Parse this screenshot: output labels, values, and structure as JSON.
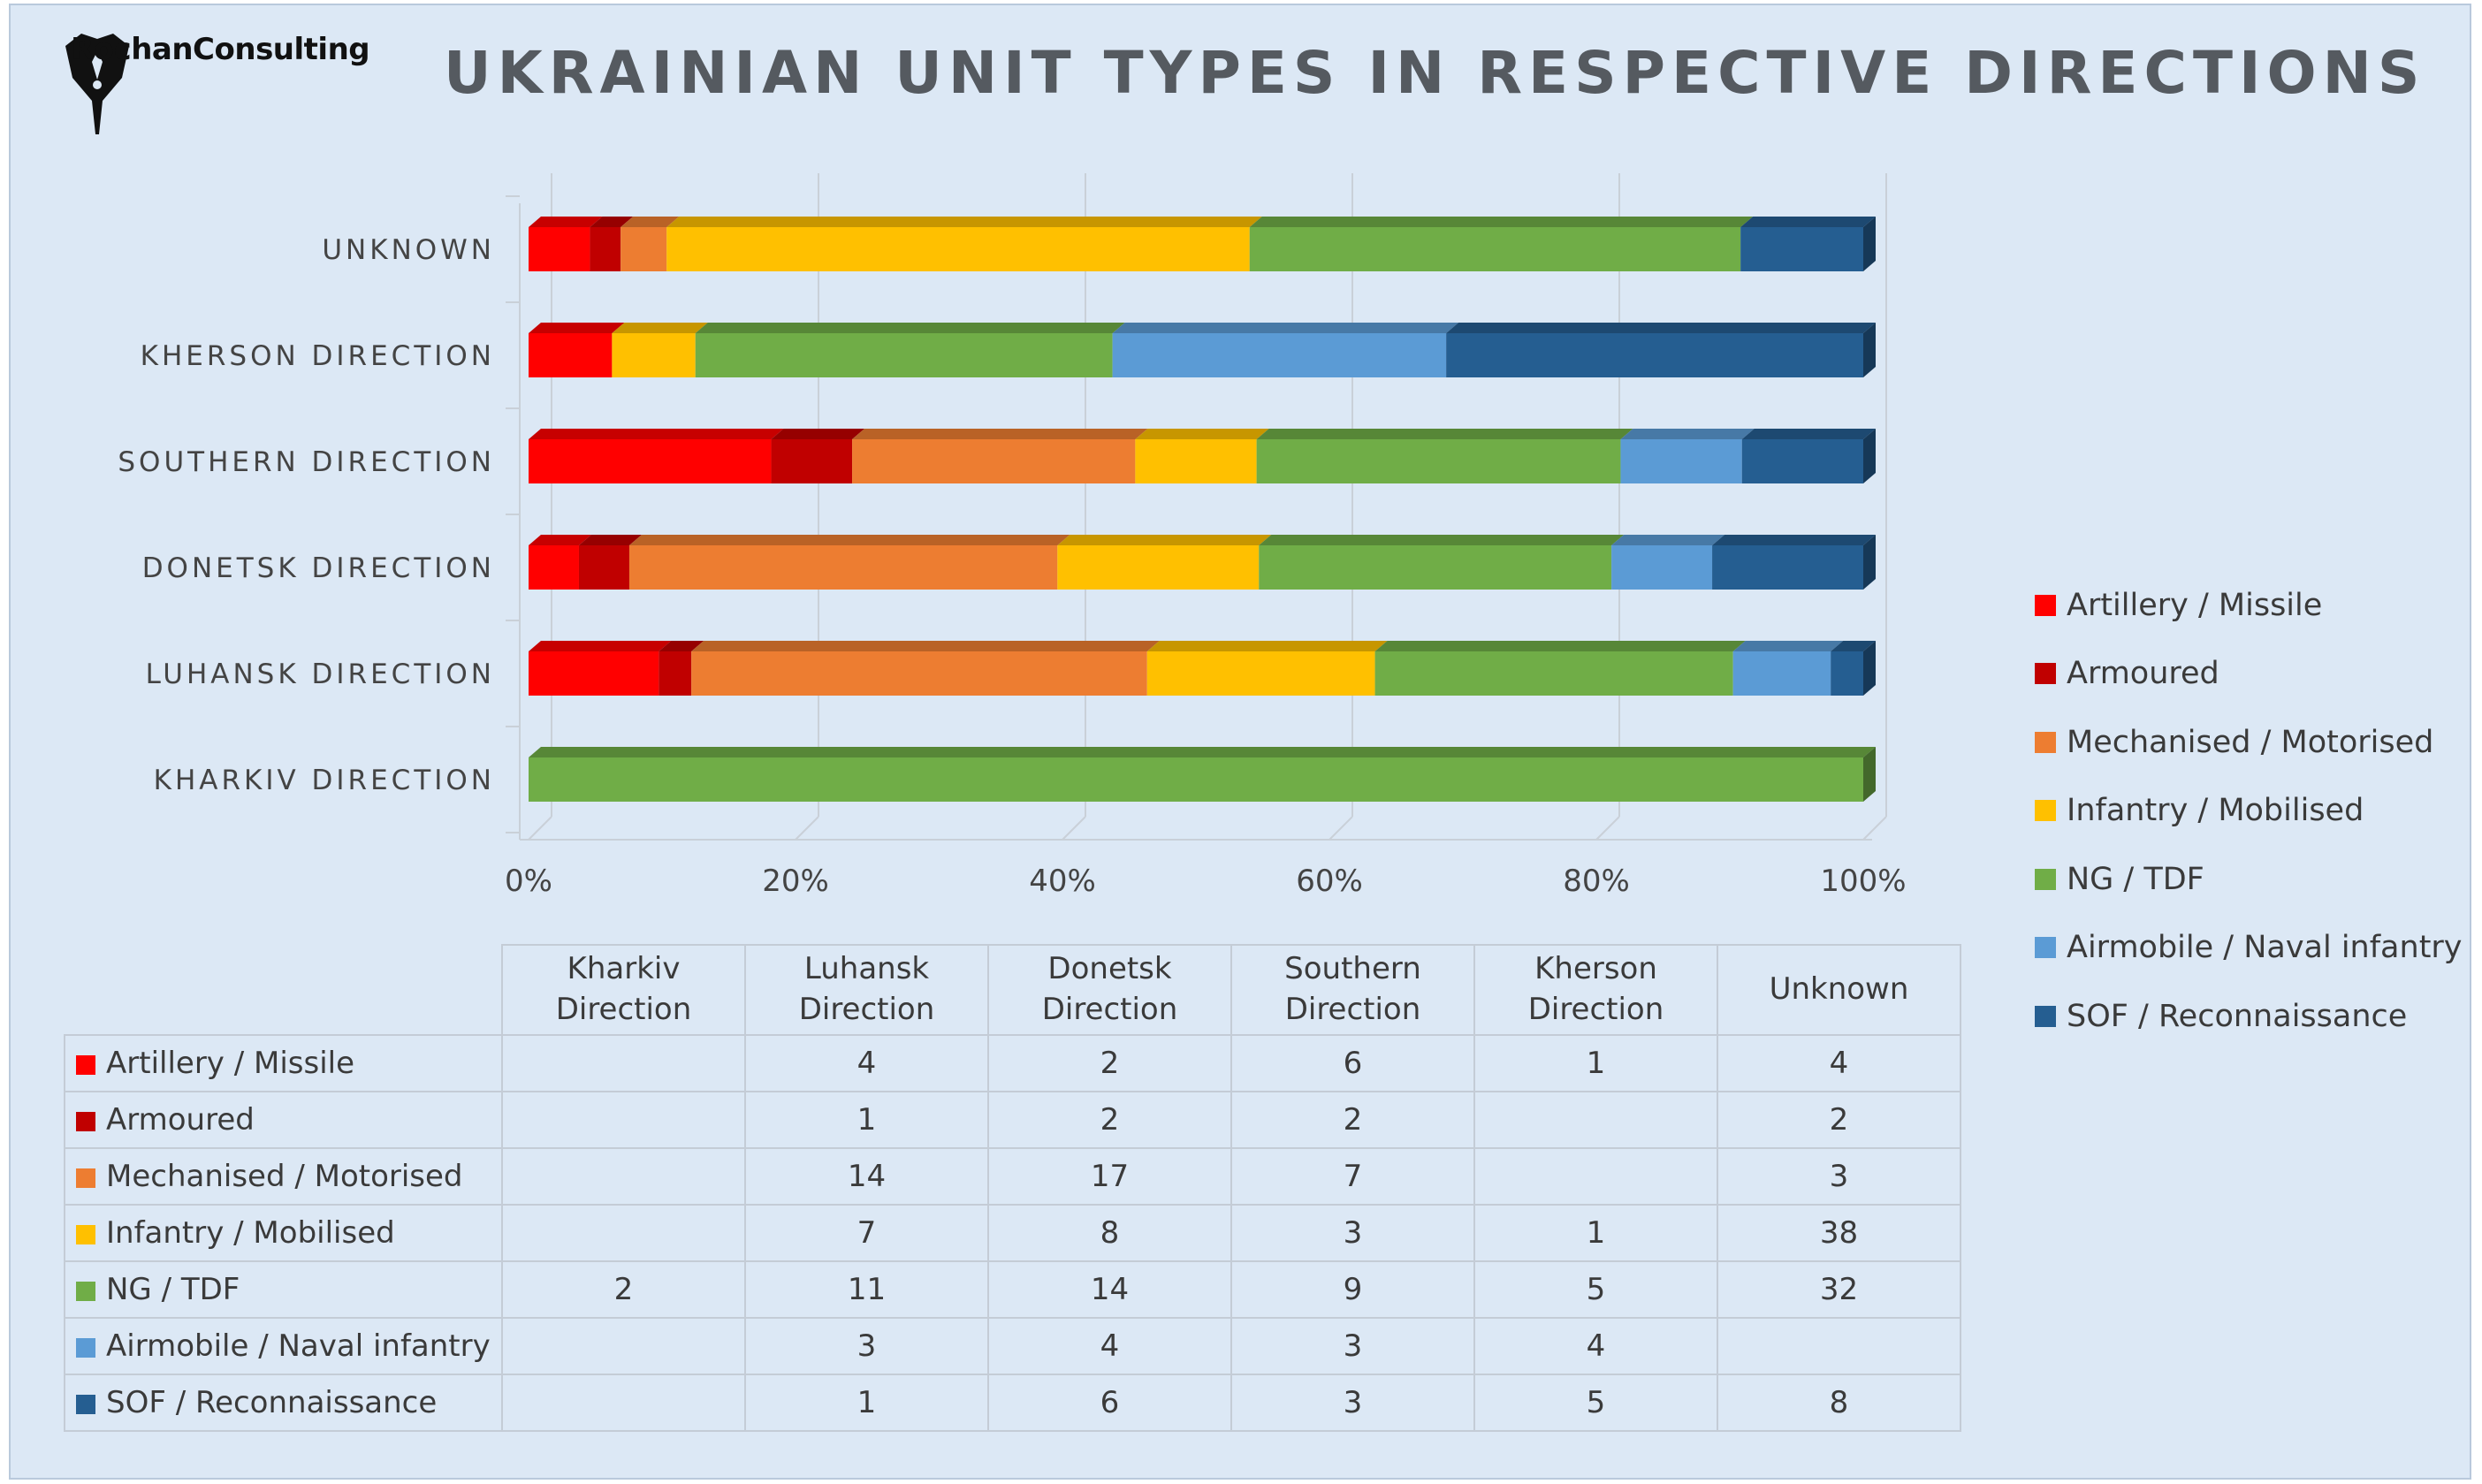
{
  "logo": {
    "text": "RochanConsulting",
    "icon": "pen-nib-icon"
  },
  "title": "UKRAINIAN UNIT TYPES IN RESPECTIVE DIRECTIONS",
  "legend": [
    {
      "label": "Artillery / Missile",
      "color": "#ff0000"
    },
    {
      "label": "Armoured",
      "color": "#c00000"
    },
    {
      "label": "Mechanised / Motorised",
      "color": "#ed7d31"
    },
    {
      "label": "Infantry / Mobilised",
      "color": "#ffc000"
    },
    {
      "label": "NG / TDF",
      "color": "#70ad47"
    },
    {
      "label": "Airmobile / Naval infantry",
      "color": "#5b9bd5"
    },
    {
      "label": "SOF / Reconnaissance",
      "color": "#255e91"
    }
  ],
  "chart_data": {
    "type": "bar",
    "orientation": "horizontal",
    "stacking": "percent",
    "title": "UKRAINIAN UNIT TYPES IN RESPECTIVE DIRECTIONS",
    "categories": [
      "UNKNOWN",
      "KHERSON DIRECTION",
      "SOUTHERN DIRECTION",
      "DONETSK DIRECTION",
      "LUHANSK DIRECTION",
      "KHARKIV DIRECTION"
    ],
    "x_ticks": [
      "0%",
      "20%",
      "40%",
      "60%",
      "80%",
      "100%"
    ],
    "xlim": [
      0,
      1
    ],
    "grid": true,
    "legend_position": "right",
    "series": [
      {
        "name": "Artillery / Missile",
        "color": "#ff0000",
        "values": [
          4,
          1,
          6,
          2,
          4,
          0
        ]
      },
      {
        "name": "Armoured",
        "color": "#c00000",
        "values": [
          2,
          0,
          2,
          2,
          1,
          0
        ]
      },
      {
        "name": "Mechanised / Motorised",
        "color": "#ed7d31",
        "values": [
          3,
          0,
          7,
          17,
          14,
          0
        ]
      },
      {
        "name": "Infantry / Mobilised",
        "color": "#ffc000",
        "values": [
          38,
          1,
          3,
          8,
          7,
          0
        ]
      },
      {
        "name": "NG / TDF",
        "color": "#70ad47",
        "values": [
          32,
          5,
          9,
          14,
          11,
          2
        ]
      },
      {
        "name": "Airmobile / Naval infantry",
        "color": "#5b9bd5",
        "values": [
          0,
          4,
          3,
          4,
          3,
          0
        ]
      },
      {
        "name": "SOF / Reconnaissance",
        "color": "#255e91",
        "values": [
          8,
          5,
          3,
          6,
          1,
          0
        ]
      }
    ]
  },
  "table": {
    "headers": [
      [
        "Kharkiv",
        "Direction"
      ],
      [
        "Luhansk",
        "Direction"
      ],
      [
        "Donetsk",
        "Direction"
      ],
      [
        "Southern",
        "Direction"
      ],
      [
        "Kherson",
        "Direction"
      ],
      [
        "Unknown"
      ]
    ],
    "rows": [
      {
        "label": "Artillery / Missile",
        "color": "#ff0000",
        "values": [
          "",
          "4",
          "2",
          "6",
          "1",
          "4"
        ]
      },
      {
        "label": "Armoured",
        "color": "#c00000",
        "values": [
          "",
          "1",
          "2",
          "2",
          "",
          "2"
        ]
      },
      {
        "label": "Mechanised / Motorised",
        "color": "#ed7d31",
        "values": [
          "",
          "14",
          "17",
          "7",
          "",
          "3"
        ]
      },
      {
        "label": "Infantry / Mobilised",
        "color": "#ffc000",
        "values": [
          "",
          "7",
          "8",
          "3",
          "1",
          "38"
        ]
      },
      {
        "label": "NG / TDF",
        "color": "#70ad47",
        "values": [
          "2",
          "11",
          "14",
          "9",
          "5",
          "32"
        ]
      },
      {
        "label": "Airmobile / Naval infantry",
        "color": "#5b9bd5",
        "values": [
          "",
          "3",
          "4",
          "3",
          "4",
          ""
        ]
      },
      {
        "label": "SOF / Reconnaissance",
        "color": "#255e91",
        "values": [
          "",
          "1",
          "6",
          "3",
          "5",
          "8"
        ]
      }
    ]
  }
}
